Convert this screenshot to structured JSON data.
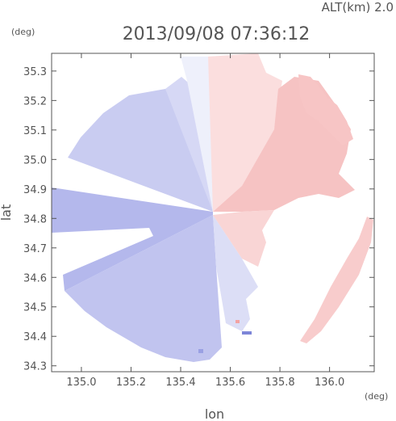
{
  "header": {
    "altitude": "ALT(km) 2.0",
    "timestamp": "2013/09/08 07:36:12"
  },
  "colors": {
    "approaching": "#a9aee9",
    "receding": "#f5b3b3",
    "neutral": "#f4f4fb",
    "axis": "#555555"
  },
  "chart_data": {
    "type": "heatmap",
    "title": "2013/09/08 07:36:12",
    "xlabel": "lon",
    "ylabel": "lat",
    "x_unit": "(deg)",
    "y_unit": "(deg)",
    "xlim": [
      134.88,
      136.18
    ],
    "ylim": [
      34.28,
      35.36
    ],
    "x_ticks": [
      135.0,
      135.2,
      135.4,
      135.6,
      135.8,
      136.0
    ],
    "x_tick_labels": [
      "135.0",
      "135.2",
      "135.4",
      "135.6",
      "135.8",
      "136.0"
    ],
    "y_ticks": [
      34.3,
      34.4,
      34.5,
      34.6,
      34.7,
      34.8,
      34.9,
      35.0,
      35.1,
      35.2,
      35.3
    ],
    "y_tick_labels": [
      "34.3",
      "34.4",
      "34.5",
      "34.6",
      "34.7",
      "34.8",
      "34.9",
      "35.0",
      "35.1",
      "35.2",
      "35.3"
    ],
    "radar_center": [
      135.53,
      34.81
    ],
    "field_description_values": "Doppler velocity field: negative (blue) west of radar, positive (red) east of radar"
  }
}
